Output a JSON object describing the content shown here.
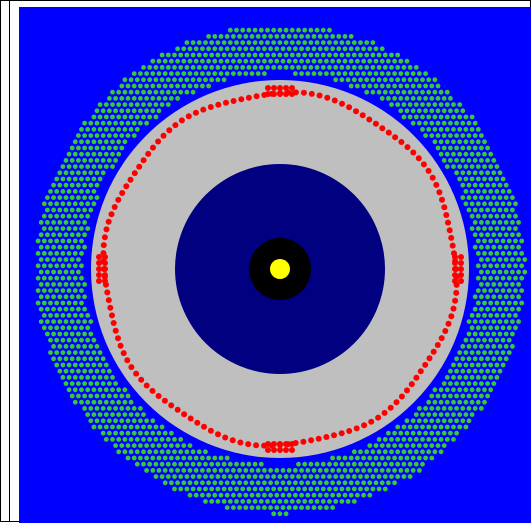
{
  "scene": {
    "colors": {
      "background": "#0000ff",
      "outer_dots": "#38c838",
      "gray_ring": "#bfbfbf",
      "red_dots": "#ff0000",
      "inner_disk": "#000080",
      "black_disk": "#000000",
      "yellow_dot": "#ffff00",
      "frame": "#000000"
    },
    "icons": {
      "outer_dot": "green-dot-icon",
      "ring_dot": "red-dot-icon",
      "center_dot": "yellow-dot-icon"
    }
  }
}
